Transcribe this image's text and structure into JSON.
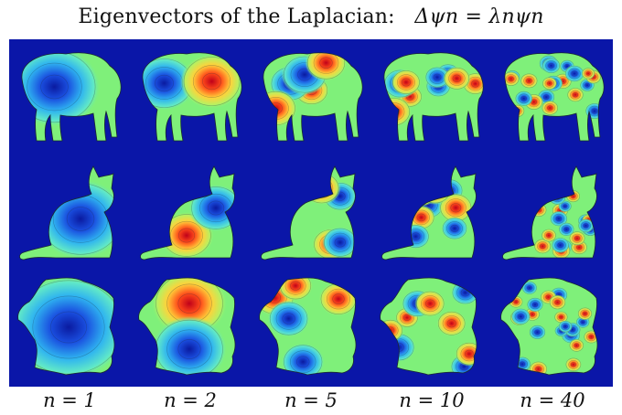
{
  "title": {
    "text": "Eigenvectors of the Laplacian:",
    "equation": "Δψn = λnψn"
  },
  "rows": [
    {
      "shape": "elephant"
    },
    {
      "shape": "cat"
    },
    {
      "shape": "france"
    }
  ],
  "columns": [
    {
      "label": "n = 1",
      "n": 1
    },
    {
      "label": "n = 2",
      "n": 2
    },
    {
      "label": "n = 5",
      "n": 5
    },
    {
      "label": "n = 10",
      "n": 10
    },
    {
      "label": "n = 40",
      "n": 40
    }
  ],
  "colors": {
    "background": "#0a16a8",
    "neutral": "#7ff07a",
    "positive": "#e8201a",
    "negative": "#1a3fd0"
  }
}
